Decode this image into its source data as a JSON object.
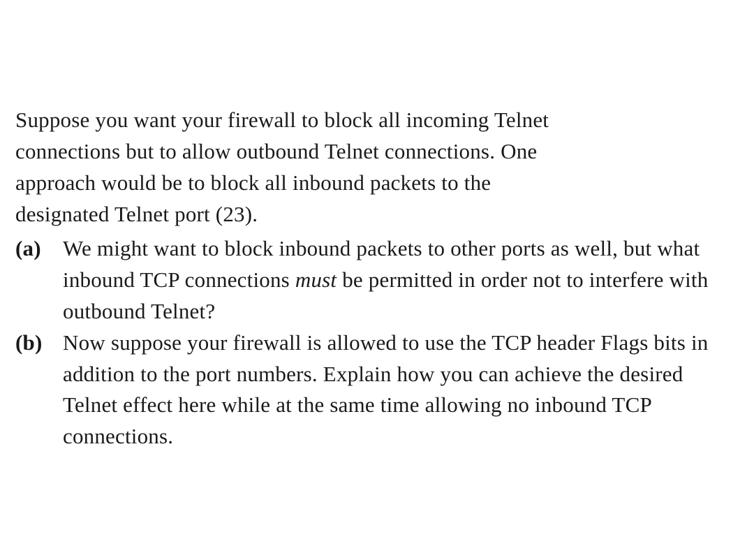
{
  "intro": {
    "line1": "Suppose you want your firewall to block all incoming Telnet",
    "line2": "connections but to allow outbound Telnet connections. One",
    "line3": "approach would be to block all inbound packets to the",
    "line4": "designated Telnet port (23)."
  },
  "items": [
    {
      "label": "(a)",
      "pre": "We might want to block inbound packets to other ports as well, but what inbound TCP connections ",
      "em": "must",
      "post": " be permitted in order not to interfere with outbound Telnet?"
    },
    {
      "label": "(b)",
      "pre": "Now suppose your firewall is allowed to use the TCP header Flags bits in addition to the port numbers. Explain how you can achieve the desired Telnet effect here while at the same time allowing no inbound TCP connections.",
      "em": "",
      "post": ""
    }
  ],
  "style": {
    "text_color": "#1a1a1a",
    "background_color": "#ffffff",
    "font_family": "Georgia serif",
    "font_size_pt": 31,
    "line_height": 1.45,
    "label_font_weight": 700
  }
}
